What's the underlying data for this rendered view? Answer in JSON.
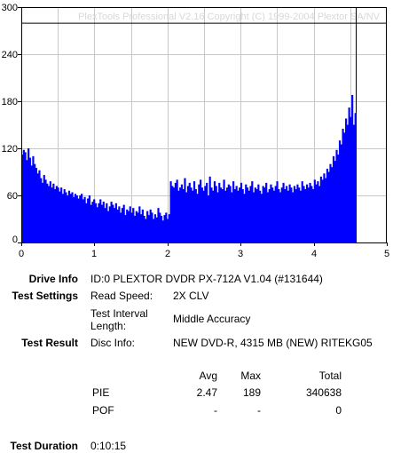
{
  "watermark": "PlexTools Professional V2.16 Copyright (C) 1999-2004 Plextor SA/NV",
  "chart_data": {
    "type": "bar",
    "title": "",
    "xlabel": "",
    "ylabel": "",
    "xlim": [
      0,
      5
    ],
    "ylim": [
      0,
      300
    ],
    "x_ticks": [
      "0",
      "1",
      "2",
      "3",
      "4",
      "5"
    ],
    "y_ticks": [
      "0",
      "60",
      "120",
      "180",
      "240",
      "300"
    ],
    "grid": true,
    "bar_color": "#0000ff",
    "reference_line": 280,
    "series": [
      {
        "x_start": 0,
        "x_step": 0.0214,
        "values": [
          112,
          118,
          115,
          105,
          120,
          108,
          98,
          110,
          100,
          95,
          88,
          92,
          82,
          76,
          86,
          80,
          75,
          72,
          78,
          70,
          75,
          68,
          72,
          70,
          65,
          70,
          62,
          68,
          64,
          60,
          66,
          62,
          64,
          58,
          62,
          60,
          56,
          60,
          62,
          55,
          58,
          50,
          56,
          60,
          48,
          52,
          55,
          50,
          45,
          50,
          55,
          48,
          52,
          44,
          50,
          40,
          46,
          52,
          48,
          44,
          50,
          42,
          46,
          38,
          44,
          48,
          35,
          42,
          40,
          46,
          38,
          44,
          34,
          40,
          38,
          46,
          36,
          42,
          34,
          30,
          40,
          35,
          42,
          38,
          30,
          36,
          32,
          44,
          38,
          34,
          28,
          35,
          38,
          30,
          36,
          78,
          72,
          70,
          76,
          80,
          66,
          70,
          74,
          68,
          82,
          64,
          72,
          76,
          70,
          66,
          78,
          68,
          62,
          74,
          80,
          70,
          66,
          72,
          76,
          60,
          84,
          70,
          66,
          78,
          72,
          64,
          76,
          70,
          68,
          80,
          66,
          70,
          74,
          72,
          64,
          78,
          68,
          72,
          66,
          70,
          76,
          68,
          62,
          74,
          70,
          66,
          72,
          78,
          64,
          70,
          68,
          74,
          66,
          62,
          72,
          70,
          76,
          64,
          68,
          74,
          70,
          66,
          72,
          78,
          68,
          64,
          70,
          76,
          68,
          72,
          66,
          74,
          70,
          64,
          72,
          68,
          74,
          70,
          66,
          78,
          72,
          68,
          74,
          70,
          76,
          72,
          68,
          80,
          74,
          78,
          72,
          84,
          80,
          88,
          82,
          94,
          90,
          100,
          96,
          110,
          104,
          118,
          112,
          130,
          125,
          145,
          140,
          158,
          150,
          172,
          160,
          188,
          150,
          165
        ]
      }
    ]
  },
  "info": {
    "drive_info_label": "Drive Info",
    "drive_info_value": "ID:0 PLEXTOR DVDR PX-712A V1.04 (#131644)",
    "settings_label": "Test Settings",
    "read_speed_label": "Read Speed:",
    "read_speed_value": "2X CLV",
    "interval_label_1": "Test Interval",
    "interval_label_2": "Length:",
    "interval_value": "Middle Accuracy",
    "result_label": "Test Result",
    "disc_info_label": "Disc Info:",
    "disc_info_value": "NEW DVD-R, 4315 MB (NEW) RITEKG05",
    "table": {
      "headers": [
        "Avg",
        "Max",
        "Total"
      ],
      "rows": [
        {
          "name": "PIE",
          "avg": "2.47",
          "max": "189",
          "total": "340638"
        },
        {
          "name": "POF",
          "avg": "-",
          "max": "-",
          "total": "0"
        }
      ]
    },
    "duration_label": "Test Duration",
    "duration_value": "0:10:15"
  }
}
